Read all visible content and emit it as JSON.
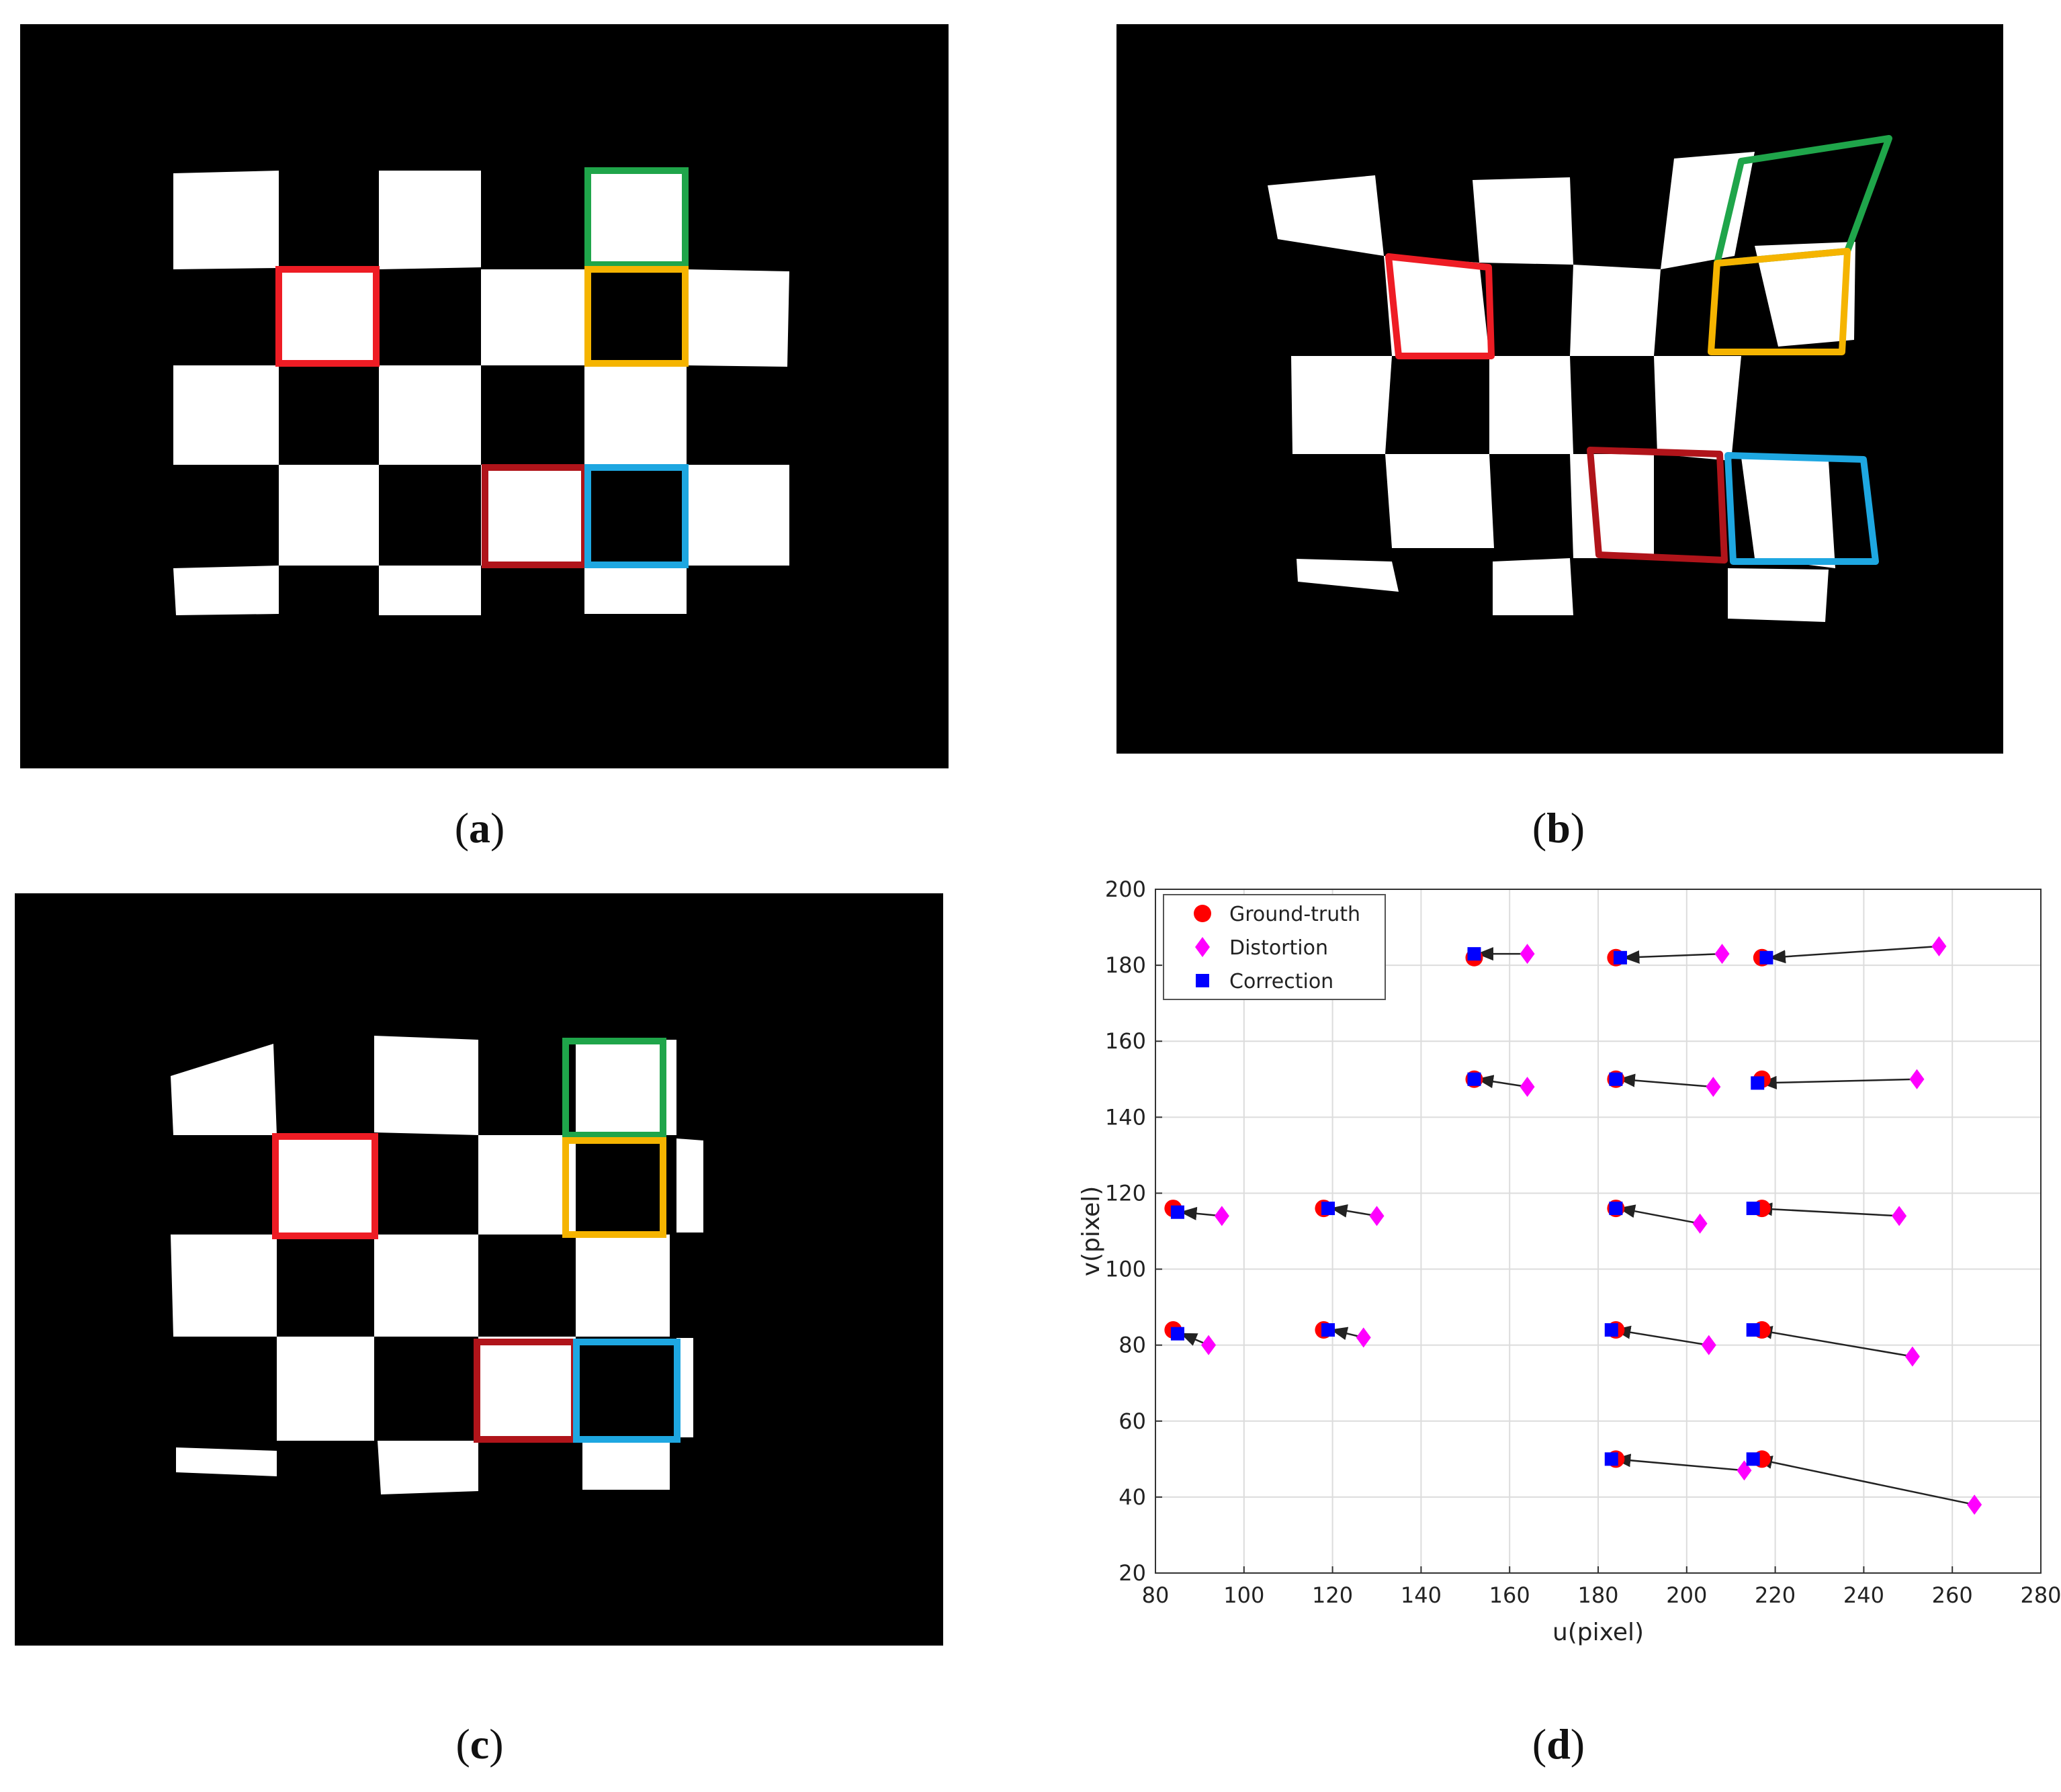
{
  "panels": [
    {
      "id": "a",
      "caption_letter": "a",
      "caption_open": "(",
      "caption_close": ")"
    },
    {
      "id": "b",
      "caption_letter": "b",
      "caption_open": "(",
      "caption_close": ")"
    },
    {
      "id": "c",
      "caption_letter": "c",
      "caption_open": "(",
      "caption_close": ")"
    },
    {
      "id": "d",
      "caption_letter": "d",
      "caption_open": "(",
      "caption_close": ")"
    }
  ],
  "colors": {
    "red": "#ee1c24",
    "dark_red": "#b0141a",
    "green": "#1fa54a",
    "orange": "#f5b400",
    "blue": "#1ea7e1"
  },
  "chart_data": {
    "type": "scatter",
    "xlabel": "u(pixel)",
    "ylabel": "v(pixel)",
    "xlim": [
      80,
      280
    ],
    "ylim": [
      20,
      200
    ],
    "xticks": [
      80,
      100,
      120,
      140,
      160,
      180,
      200,
      220,
      240,
      260,
      280
    ],
    "yticks": [
      20,
      40,
      60,
      80,
      100,
      120,
      140,
      160,
      180,
      200
    ],
    "grid": true,
    "legend_position": "top-left",
    "series": [
      {
        "name": "Ground-truth",
        "marker": "circle",
        "color": "#ff0000",
        "points": [
          [
            152,
            182
          ],
          [
            184,
            182
          ],
          [
            217,
            182
          ],
          [
            152,
            150
          ],
          [
            184,
            150
          ],
          [
            217,
            150
          ],
          [
            84,
            116
          ],
          [
            118,
            116
          ],
          [
            184,
            116
          ],
          [
            217,
            116
          ],
          [
            84,
            84
          ],
          [
            118,
            84
          ],
          [
            184,
            84
          ],
          [
            217,
            84
          ],
          [
            184,
            50
          ],
          [
            217,
            50
          ]
        ]
      },
      {
        "name": "Distortion",
        "marker": "diamond",
        "color": "#ff00ff",
        "points": [
          [
            164,
            183
          ],
          [
            208,
            183
          ],
          [
            257,
            185
          ],
          [
            164,
            148
          ],
          [
            206,
            148
          ],
          [
            252,
            150
          ],
          [
            95,
            114
          ],
          [
            130,
            114
          ],
          [
            203,
            112
          ],
          [
            248,
            114
          ],
          [
            92,
            80
          ],
          [
            127,
            82
          ],
          [
            205,
            80
          ],
          [
            251,
            77
          ],
          [
            213,
            47
          ],
          [
            265,
            38
          ]
        ]
      },
      {
        "name": "Correction",
        "marker": "square",
        "color": "#0000ff",
        "points": [
          [
            152,
            183
          ],
          [
            185,
            182
          ],
          [
            218,
            182
          ],
          [
            152,
            150
          ],
          [
            184,
            150
          ],
          [
            216,
            149
          ],
          [
            85,
            115
          ],
          [
            119,
            116
          ],
          [
            184,
            116
          ],
          [
            215,
            116
          ],
          [
            85,
            83
          ],
          [
            119,
            84
          ],
          [
            183,
            84
          ],
          [
            215,
            84
          ],
          [
            183,
            50
          ],
          [
            215,
            50
          ]
        ]
      }
    ]
  }
}
